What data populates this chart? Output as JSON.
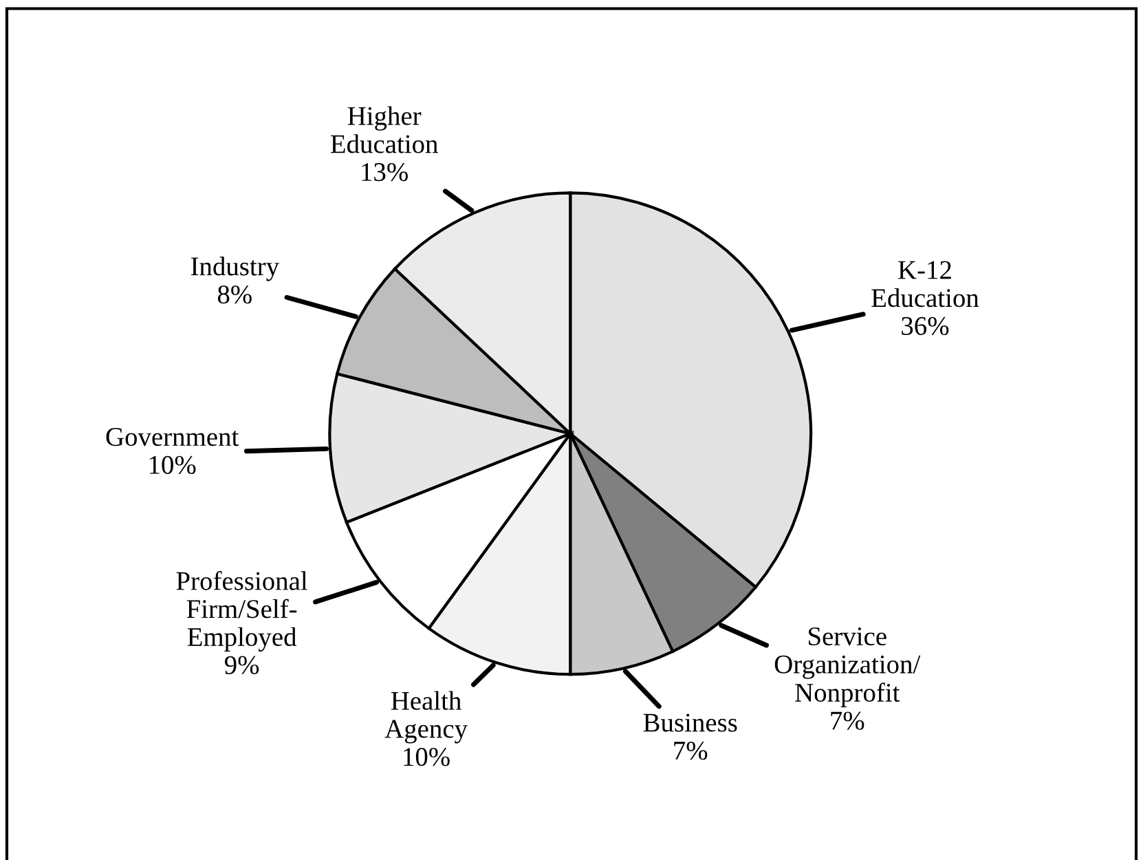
{
  "chart_data": {
    "type": "pie",
    "categories": [
      "K-12\nEducation",
      "Service\nOrganization/\nNonprofit",
      "Business",
      "Health\nAgency",
      "Professional\nFirm/Self-\nEmployed",
      "Government",
      "Industry",
      "Higher\nEducation"
    ],
    "values": [
      36,
      7,
      7,
      10,
      9,
      10,
      8,
      13
    ],
    "colors": [
      "#e2e2e2",
      "#808080",
      "#c8c8c8",
      "#f2f2f2",
      "#ffffff",
      "#e6e6e6",
      "#bdbdbd",
      "#ebebeb"
    ],
    "value_labels": [
      "36%",
      "7%",
      "7%",
      "10%",
      "9%",
      "10%",
      "8%",
      "13%"
    ],
    "legend": false
  }
}
